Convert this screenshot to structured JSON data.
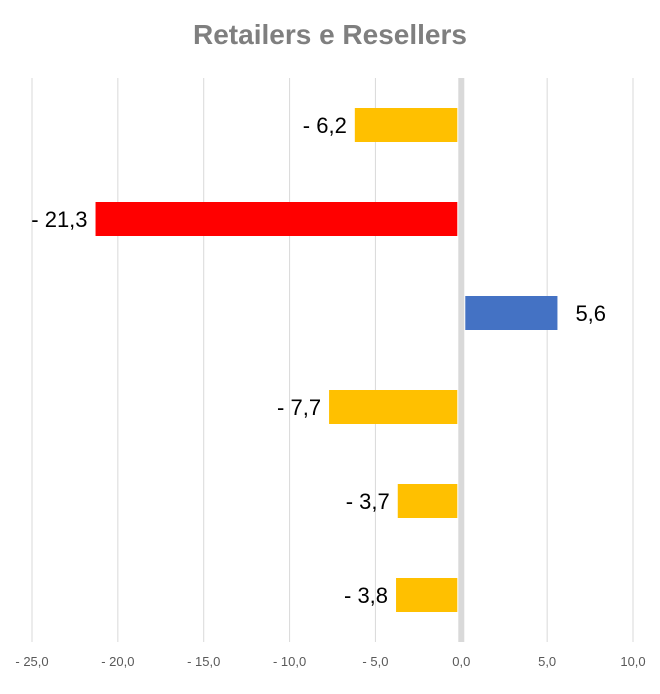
{
  "chart_data": {
    "type": "bar",
    "orientation": "horizontal",
    "title": "Retailers e Resellers",
    "xlabel": "",
    "ylabel": "",
    "xlim": [
      -25,
      10
    ],
    "x_ticks": [
      -25,
      -20,
      -15,
      -10,
      -5,
      0,
      5,
      10
    ],
    "x_tick_labels": [
      "- 25,0",
      "- 20,0",
      "- 15,0",
      "- 10,0",
      "- 5,0",
      "0,0",
      "5,0",
      "10,0"
    ],
    "grid": true,
    "legend": "none",
    "values": [
      -6.2,
      -21.3,
      5.6,
      -7.7,
      -3.7,
      -3.8
    ],
    "data_labels": [
      "- 6,2",
      "- 21,3",
      "5,6",
      "- 7,7",
      "- 3,7",
      "- 3,8"
    ],
    "bar_colors": [
      "#ffc000",
      "#ff0000",
      "#4472c4",
      "#ffc000",
      "#ffc000",
      "#ffc000"
    ]
  },
  "colors": {
    "gridline": "#d9d9d9",
    "zero_axis": "#d9d9d9"
  }
}
